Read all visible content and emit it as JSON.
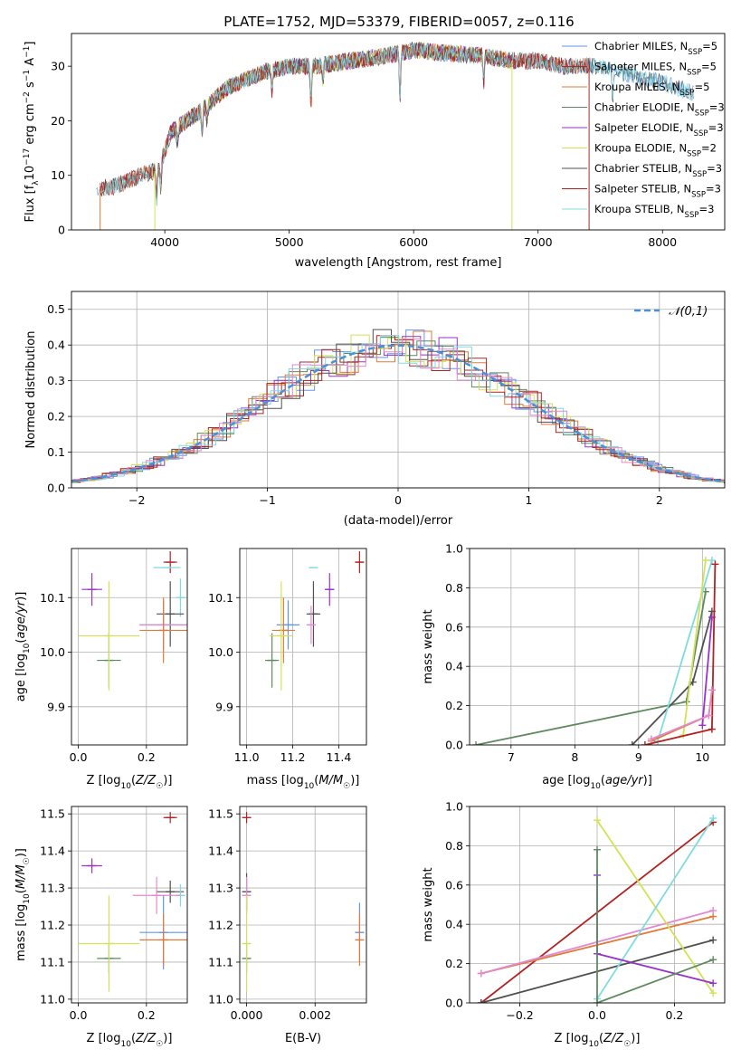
{
  "title": "PLATE=1752, MJD=53379, FIBERID=0057, z=0.116",
  "colors": {
    "Chabrier MILES": "#6495ed",
    "Salpeter MILES": "#a52a2a",
    "Kroupa MILES": "#e07b39",
    "Chabrier ELODIE": "#5f8a5f",
    "Salpeter ELODIE": "#9932cc",
    "Kroupa ELODIE": "#d4e157",
    "Chabrier STELIB": "#505050",
    "Salpeter STELIB": "#b22222",
    "Kroupa STELIB": "#7fdbe0",
    "Kroupa MILES2": "#e28ad0"
  },
  "chart_data": [
    {
      "id": "spectrum",
      "type": "line",
      "xlabel": "wavelength [Angstrom, rest frame]",
      "ylabel": "Flux [f_λ10^-17 erg cm^-2 s^-1 A^-1]",
      "xlim": [
        3250,
        8500
      ],
      "ylim": [
        0,
        36
      ],
      "xticks": [
        4000,
        5000,
        6000,
        7000,
        8000
      ],
      "yticks": [
        0,
        10,
        20,
        30
      ],
      "legend": [
        {
          "label": "Chabrier MILES, N",
          "sub": "SSP",
          "tail": "=5",
          "color_key": "Chabrier MILES"
        },
        {
          "label": "Salpeter MILES, N",
          "sub": "SSP",
          "tail": "=5",
          "color_key": "Salpeter MILES"
        },
        {
          "label": "Kroupa MILES, N",
          "sub": "SSP",
          "tail": "=5",
          "color_key": "Kroupa MILES"
        },
        {
          "label": "Chabrier ELODIE, N",
          "sub": "SSP",
          "tail": "=3",
          "color_key": "Chabrier ELODIE"
        },
        {
          "label": "Salpeter ELODIE, N",
          "sub": "SSP",
          "tail": "=3",
          "color_key": "Salpeter ELODIE"
        },
        {
          "label": "Kroupa ELODIE, N",
          "sub": "SSP",
          "tail": "=2",
          "color_key": "Kroupa ELODIE"
        },
        {
          "label": "Chabrier STELIB, N",
          "sub": "SSP",
          "tail": "=3",
          "color_key": "Chabrier STELIB"
        },
        {
          "label": "Salpeter STELIB, N",
          "sub": "SSP",
          "tail": "=3",
          "color_key": "Salpeter STELIB"
        },
        {
          "label": "Kroupa STELIB, N",
          "sub": "SSP",
          "tail": "=3",
          "color_key": "Kroupa STELIB"
        }
      ],
      "legend_position": "upper-right",
      "spectrum_envelope": [
        [
          3450,
          7.5
        ],
        [
          3600,
          8
        ],
        [
          3800,
          10
        ],
        [
          3950,
          11
        ],
        [
          4050,
          18
        ],
        [
          4300,
          22
        ],
        [
          4500,
          26
        ],
        [
          4800,
          29
        ],
        [
          5000,
          30
        ],
        [
          5200,
          30
        ],
        [
          5500,
          31
        ],
        [
          5800,
          32
        ],
        [
          6000,
          33
        ],
        [
          6200,
          32.5
        ],
        [
          6500,
          32
        ],
        [
          6800,
          31
        ],
        [
          7000,
          31
        ],
        [
          7200,
          30
        ],
        [
          7500,
          30
        ],
        [
          7800,
          28
        ],
        [
          8000,
          27
        ],
        [
          8250,
          25
        ]
      ],
      "model_ranges": [
        [
          3450,
          8250
        ],
        [
          3480,
          7420
        ],
        [
          3480,
          7420
        ],
        [
          3900,
          6800
        ],
        [
          3900,
          6800
        ],
        [
          3900,
          6800
        ],
        [
          3480,
          8250
        ],
        [
          3480,
          7420
        ],
        [
          3480,
          8250
        ]
      ]
    },
    {
      "id": "residuals",
      "type": "histogram",
      "xlabel": "(data-model)/error",
      "ylabel": "Normed distribution",
      "xlim": [
        -2.5,
        2.5
      ],
      "ylim": [
        0,
        0.55
      ],
      "xticks": [
        -2,
        -1,
        0,
        1,
        2
      ],
      "yticks": [
        0.0,
        0.1,
        0.2,
        0.3,
        0.4,
        0.5
      ],
      "legend_label": "𝒩(0,1)",
      "legend_position": "upper-right"
    },
    {
      "id": "age-vs-Z",
      "type": "scatter",
      "xlabel": "Z [log10(Z/Z☉)]",
      "ylabel": "age [log10(age/yr)]",
      "xlim": [
        -0.02,
        0.32
      ],
      "ylim": [
        9.83,
        10.19
      ],
      "xticks": [
        0.0,
        0.2
      ],
      "yticks": [
        9.9,
        10.0,
        10.1
      ],
      "points": [
        {
          "x": 0.04,
          "y": 10.115,
          "xerr": 0.03,
          "yerr": 0.03,
          "color_key": "Salpeter ELODIE"
        },
        {
          "x": 0.27,
          "y": 10.165,
          "xerr": 0.02,
          "yerr": 0.02,
          "color_key": "Salpeter STELIB"
        },
        {
          "x": 0.26,
          "y": 10.155,
          "xerr": 0.04,
          "yerr": 0.0,
          "color_key": "Kroupa STELIB"
        },
        {
          "x": 0.3,
          "y": 10.1,
          "xerr": 0.0,
          "yerr": 0.035,
          "color_key": "Kroupa STELIB"
        },
        {
          "x": 0.27,
          "y": 10.07,
          "xerr": 0.04,
          "yerr": 0.06,
          "color_key": "Chabrier STELIB"
        },
        {
          "x": 0.25,
          "y": 10.05,
          "xerr": 0.07,
          "yerr": 0.045,
          "color_key": "Chabrier MILES"
        },
        {
          "x": 0.25,
          "y": 10.05,
          "xerr": 0.07,
          "yerr": 0.035,
          "color_key": "Kroupa MILES2"
        },
        {
          "x": 0.25,
          "y": 10.04,
          "xerr": 0.07,
          "yerr": 0.06,
          "color_key": "Kroupa MILES"
        },
        {
          "x": 0.09,
          "y": 9.985,
          "xerr": 0.035,
          "yerr": 0.05,
          "color_key": "Chabrier ELODIE"
        },
        {
          "x": 0.09,
          "y": 10.03,
          "xerr": 0.09,
          "yerr": 0.1,
          "color_key": "Kroupa ELODIE"
        }
      ]
    },
    {
      "id": "age-vs-mass",
      "type": "scatter",
      "xlabel": "mass [log10(M/M☉)]",
      "ylabel": "",
      "xlim": [
        10.97,
        11.52
      ],
      "ylim": [
        9.83,
        10.19
      ],
      "xticks": [
        11.0,
        11.2,
        11.4
      ],
      "yticks": [
        9.9,
        10.0,
        10.1
      ],
      "points": [
        {
          "x": 11.36,
          "y": 10.115,
          "xerr": 0.02,
          "yerr": 0.03,
          "color_key": "Salpeter ELODIE"
        },
        {
          "x": 11.49,
          "y": 10.165,
          "xerr": 0.015,
          "yerr": 0.02,
          "color_key": "Salpeter STELIB"
        },
        {
          "x": 11.29,
          "y": 10.155,
          "xerr": 0.02,
          "yerr": 0.0,
          "color_key": "Kroupa STELIB"
        },
        {
          "x": 11.29,
          "y": 10.07,
          "xerr": 0.03,
          "yerr": 0.06,
          "color_key": "Chabrier STELIB"
        },
        {
          "x": 11.18,
          "y": 10.05,
          "xerr": 0.05,
          "yerr": 0.045,
          "color_key": "Chabrier MILES"
        },
        {
          "x": 11.28,
          "y": 10.05,
          "xerr": 0.02,
          "yerr": 0.035,
          "color_key": "Kroupa MILES2"
        },
        {
          "x": 11.16,
          "y": 10.04,
          "xerr": 0.05,
          "yerr": 0.06,
          "color_key": "Kroupa MILES"
        },
        {
          "x": 11.11,
          "y": 9.985,
          "xerr": 0.03,
          "yerr": 0.05,
          "color_key": "Chabrier ELODIE"
        },
        {
          "x": 11.15,
          "y": 10.03,
          "xerr": 0.05,
          "yerr": 0.1,
          "color_key": "Kroupa ELODIE"
        }
      ]
    },
    {
      "id": "weight-vs-age",
      "type": "line",
      "xlabel": "age [log10(age/yr)]",
      "ylabel": "mass weight",
      "xlim": [
        6.35,
        10.35
      ],
      "ylim": [
        0,
        1.0
      ],
      "xticks": [
        7,
        8,
        9,
        10
      ],
      "yticks": [
        0.0,
        0.2,
        0.4,
        0.6,
        0.8,
        1.0
      ],
      "series": [
        {
          "color_key": "Chabrier ELODIE",
          "x": [
            6.45,
            9.75,
            10.05
          ],
          "y": [
            0.0,
            0.22,
            0.78
          ]
        },
        {
          "color_key": "Chabrier STELIB",
          "x": [
            8.9,
            9.85,
            10.15
          ],
          "y": [
            0.0,
            0.32,
            0.68
          ]
        },
        {
          "color_key": "Kroupa STELIB",
          "x": [
            9.3,
            10.15
          ],
          "y": [
            0.02,
            0.94
          ]
        },
        {
          "color_key": "Kroupa ELODIE",
          "x": [
            9.7,
            10.05
          ],
          "y": [
            0.05,
            0.94
          ]
        },
        {
          "color_key": "Salpeter ELODIE",
          "x": [
            10.0,
            10.15
          ],
          "y": [
            0.1,
            0.65
          ]
        },
        {
          "color_key": "Kroupa MILES",
          "x": [
            9.2,
            10.1,
            10.15
          ],
          "y": [
            0.02,
            0.15,
            0.28
          ]
        },
        {
          "color_key": "Salpeter STELIB",
          "x": [
            9.1,
            10.15,
            10.2
          ],
          "y": [
            0.0,
            0.08,
            0.92
          ]
        },
        {
          "color_key": "Kroupa MILES2",
          "x": [
            9.2,
            10.1,
            10.15
          ],
          "y": [
            0.03,
            0.15,
            0.28
          ]
        }
      ]
    },
    {
      "id": "mass-vs-Z",
      "type": "scatter",
      "xlabel": "Z [log10(Z/Z☉)]",
      "ylabel": "mass [log10(M/M☉)]",
      "xlim": [
        -0.02,
        0.32
      ],
      "ylim": [
        10.99,
        11.52
      ],
      "xticks": [
        0.0,
        0.2
      ],
      "yticks": [
        11.0,
        11.1,
        11.2,
        11.3,
        11.4,
        11.5
      ],
      "points": [
        {
          "x": 0.04,
          "y": 11.36,
          "xerr": 0.03,
          "yerr": 0.02,
          "color_key": "Salpeter ELODIE"
        },
        {
          "x": 0.27,
          "y": 11.49,
          "xerr": 0.02,
          "yerr": 0.015,
          "color_key": "Salpeter STELIB"
        },
        {
          "x": 0.27,
          "y": 11.29,
          "xerr": 0.04,
          "yerr": 0.03,
          "color_key": "Chabrier STELIB"
        },
        {
          "x": 0.3,
          "y": 11.28,
          "xerr": 0.0,
          "yerr": 0.03,
          "color_key": "Kroupa STELIB"
        },
        {
          "x": 0.23,
          "y": 11.28,
          "xerr": 0.07,
          "yerr": 0.05,
          "color_key": "Kroupa MILES2"
        },
        {
          "x": 0.25,
          "y": 11.18,
          "xerr": 0.07,
          "yerr": 0.1,
          "color_key": "Chabrier MILES"
        },
        {
          "x": 0.25,
          "y": 11.16,
          "xerr": 0.07,
          "yerr": 0.07,
          "color_key": "Kroupa MILES"
        },
        {
          "x": 0.09,
          "y": 11.11,
          "xerr": 0.035,
          "yerr": 0.04,
          "color_key": "Chabrier ELODIE"
        },
        {
          "x": 0.09,
          "y": 11.15,
          "xerr": 0.09,
          "yerr": 0.13,
          "color_key": "Kroupa ELODIE"
        }
      ]
    },
    {
      "id": "mass-vs-EBV",
      "type": "scatter",
      "xlabel": "E(B-V)",
      "ylabel": "",
      "xlim": [
        -0.0002,
        0.0035
      ],
      "ylim": [
        10.99,
        11.52
      ],
      "xticks": [
        0.0,
        0.002
      ],
      "yticks": [
        11.0,
        11.1,
        11.2,
        11.3,
        11.4,
        11.5
      ],
      "points": [
        {
          "x": 0.0,
          "y": 11.49,
          "xerr": 0.0,
          "yerr": 0.015,
          "color_key": "Salpeter STELIB"
        },
        {
          "x": 0.0,
          "y": 11.29,
          "xerr": 0.0,
          "yerr": 0.05,
          "color_key": "Chabrier STELIB"
        },
        {
          "x": 0.0,
          "y": 11.28,
          "xerr": 0.0,
          "yerr": 0.05,
          "color_key": "Kroupa MILES2"
        },
        {
          "x": 0.0,
          "y": 11.11,
          "xerr": 0.0,
          "yerr": 0.04,
          "color_key": "Chabrier ELODIE"
        },
        {
          "x": 0.0,
          "y": 11.15,
          "xerr": 0.0,
          "yerr": 0.13,
          "color_key": "Kroupa ELODIE"
        },
        {
          "x": 0.0033,
          "y": 11.18,
          "xerr": 0.0,
          "yerr": 0.08,
          "color_key": "Chabrier MILES"
        },
        {
          "x": 0.0033,
          "y": 11.16,
          "xerr": 0.0,
          "yerr": 0.07,
          "color_key": "Kroupa MILES"
        }
      ]
    },
    {
      "id": "weight-vs-Z",
      "type": "line",
      "xlabel": "Z [log10(Z/Z☉)]",
      "ylabel": "mass weight",
      "xlim": [
        -0.33,
        0.33
      ],
      "ylim": [
        0,
        1.0
      ],
      "xticks": [
        -0.2,
        0.0,
        0.2
      ],
      "yticks": [
        0.0,
        0.2,
        0.4,
        0.6,
        0.8,
        1.0
      ],
      "series": [
        {
          "color_key": "Salpeter STELIB",
          "x": [
            -0.3,
            0.3
          ],
          "y": [
            0.0,
            0.92
          ]
        },
        {
          "color_key": "Kroupa MILES",
          "x": [
            -0.3,
            0.3
          ],
          "y": [
            0.15,
            0.44
          ]
        },
        {
          "color_key": "Kroupa MILES2",
          "x": [
            -0.3,
            0.3
          ],
          "y": [
            0.15,
            0.47
          ]
        },
        {
          "color_key": "Chabrier STELIB",
          "x": [
            -0.3,
            0.3
          ],
          "y": [
            0.0,
            0.32
          ]
        },
        {
          "color_key": "Kroupa ELODIE",
          "x": [
            0.0,
            0.3
          ],
          "y": [
            0.93,
            0.05
          ]
        },
        {
          "color_key": "Kroupa STELIB",
          "x": [
            0.0,
            0.3
          ],
          "y": [
            0.02,
            0.94
          ]
        },
        {
          "color_key": "Salpeter ELODIE",
          "x": [
            0.0,
            0.0,
            0.3
          ],
          "y": [
            0.65,
            0.25,
            0.1
          ]
        },
        {
          "color_key": "Chabrier ELODIE",
          "x": [
            0.0,
            0.0,
            0.3
          ],
          "y": [
            0.78,
            0.0,
            0.22
          ]
        }
      ]
    }
  ]
}
